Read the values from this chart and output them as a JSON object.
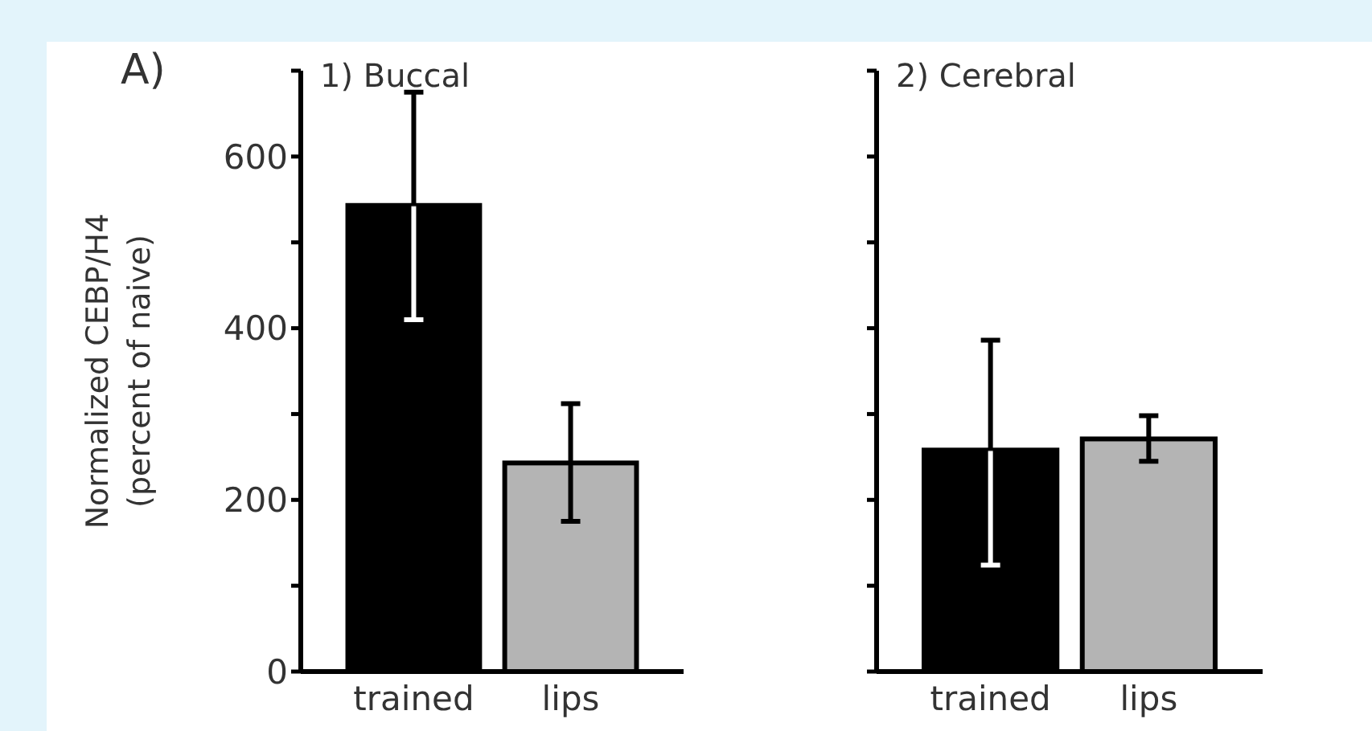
{
  "chart_data": [
    {
      "type": "bar",
      "title": "1) Buccal",
      "ylabel": "Normalized CEBP/H4\n(percent of naive)",
      "annotations": [
        "A)"
      ],
      "categories": [
        "trained",
        "lips"
      ],
      "series": [
        {
          "values": [
            543,
            243
          ],
          "colors": [
            "#000000",
            "#b4b4b4"
          ],
          "errors": [
            [
              410,
              675
            ],
            [
              175,
              312
            ]
          ]
        }
      ],
      "ylim": [
        0,
        700
      ],
      "yticks": [
        0,
        {
          "value": 100,
          "label": null
        },
        200,
        {
          "value": 300,
          "label": null
        },
        400,
        {
          "value": 500,
          "label": null
        },
        600,
        {
          "value": 700,
          "label": null
        }
      ],
      "grid": false
    },
    {
      "type": "bar",
      "title": "2) Cerebral",
      "categories": [
        "trained",
        "lips"
      ],
      "series": [
        {
          "values": [
            258,
            271
          ],
          "colors": [
            "#000000",
            "#b4b4b4"
          ],
          "errors": [
            [
              124,
              386
            ],
            [
              245,
              298
            ]
          ]
        }
      ],
      "ylim": [
        0,
        700
      ],
      "yticks": [
        0,
        100,
        200,
        300,
        400,
        500,
        600,
        700
      ],
      "tick_labels": "x",
      "grid": false
    }
  ]
}
